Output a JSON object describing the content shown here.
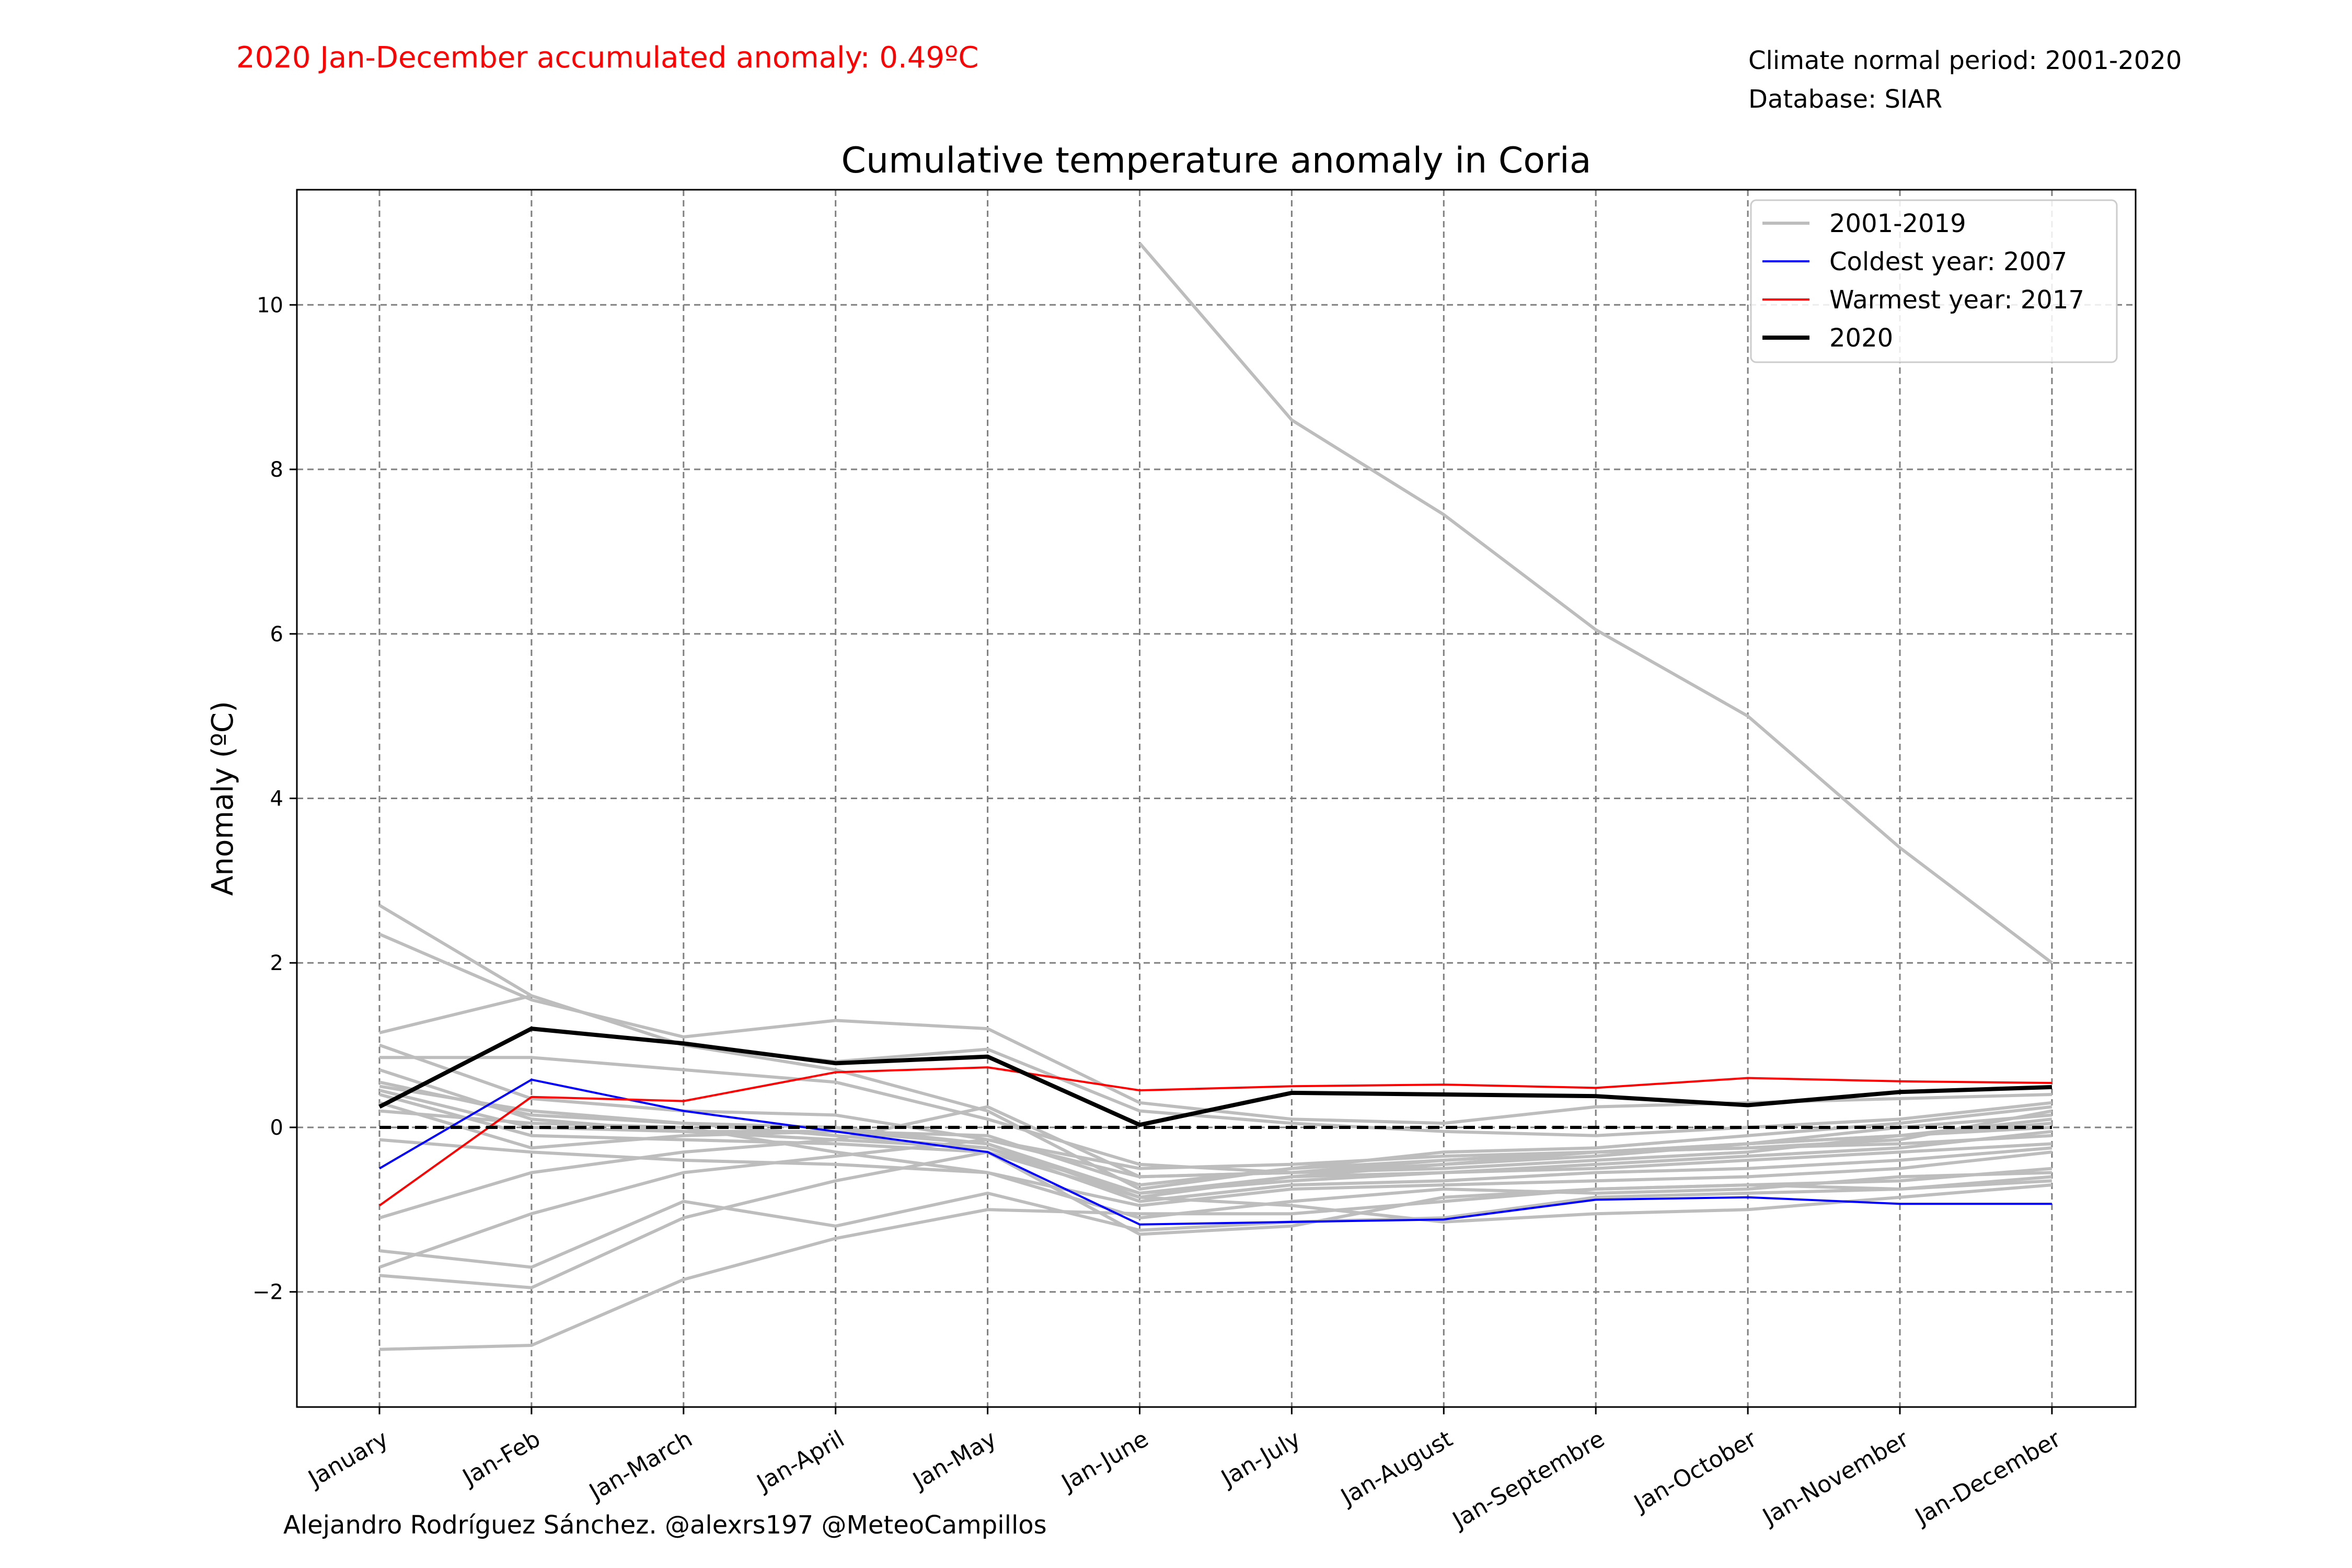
{
  "header": {
    "anomaly_text": "2020 Jan-December accumulated anomaly: 0.49ºC",
    "normal_period": "Climate normal period: 2001-2020",
    "database": "Database: SIAR"
  },
  "credit": "Alejandro Rodríguez Sánchez. @alexrs197 @MeteoCampillos",
  "colors": {
    "grey": "#bdbdbd",
    "coldest": "#0000ff",
    "warmest": "#ff0000",
    "current": "#000000",
    "grid": "#808080"
  },
  "chart_data": {
    "type": "line",
    "title": "Cumulative temperature anomaly in Coria",
    "xlabel": "",
    "ylabel": "Anomaly (ºC)",
    "ylim": [
      -3.4,
      11.4
    ],
    "yticks": [
      -2,
      0,
      2,
      4,
      6,
      8,
      10
    ],
    "ytick_labels": [
      "−2",
      "0",
      "2",
      "4",
      "6",
      "8",
      "10"
    ],
    "categories": [
      "January",
      "Jan-Feb",
      "Jan-March",
      "Jan-April",
      "Jan-May",
      "Jan-June",
      "Jan-July",
      "Jan-August",
      "Jan-Septembre",
      "Jan-October",
      "Jan-November",
      "Jan-December"
    ],
    "grid": true,
    "legend_position": "top-right",
    "legend": [
      {
        "label": "2001-2019",
        "role": "grey"
      },
      {
        "label": "Coldest year: 2007",
        "role": "coldest"
      },
      {
        "label": "Warmest year: 2017",
        "role": "warmest"
      },
      {
        "label": "2020",
        "role": "current"
      }
    ],
    "zero_line": 0,
    "series": [
      {
        "role": "grey",
        "values": [
          null,
          null,
          null,
          null,
          null,
          10.75,
          8.6,
          7.45,
          6.05,
          5.0,
          3.4,
          2.0
        ]
      },
      {
        "role": "grey",
        "values": [
          2.7,
          1.6,
          1.0,
          0.7,
          0.2,
          -0.75,
          -0.5,
          -0.4,
          -0.3,
          -0.25,
          -0.15,
          0.2
        ]
      },
      {
        "role": "grey",
        "values": [
          2.35,
          1.55,
          1.1,
          1.3,
          1.2,
          0.3,
          0.1,
          0.05,
          0.25,
          0.3,
          0.35,
          0.4
        ]
      },
      {
        "role": "grey",
        "values": [
          1.15,
          1.6,
          1.0,
          0.8,
          0.95,
          0.2,
          0.05,
          -0.05,
          -0.1,
          0.0,
          0.1,
          0.3
        ]
      },
      {
        "role": "grey",
        "values": [
          0.85,
          0.85,
          0.7,
          0.55,
          0.1,
          -0.45,
          -0.55,
          -0.5,
          -0.4,
          -0.3,
          -0.1,
          0.1
        ]
      },
      {
        "role": "grey",
        "values": [
          1.0,
          0.35,
          0.2,
          0.15,
          -0.15,
          -0.6,
          -0.55,
          -0.45,
          -0.35,
          -0.2,
          -0.1,
          0.05
        ]
      },
      {
        "role": "grey",
        "values": [
          0.7,
          0.1,
          -0.05,
          -0.05,
          -0.2,
          -0.8,
          -0.65,
          -0.55,
          -0.45,
          -0.35,
          -0.25,
          -0.05
        ]
      },
      {
        "role": "grey",
        "values": [
          0.5,
          0.2,
          0.05,
          -0.1,
          -0.25,
          -0.9,
          -0.7,
          -0.65,
          -0.55,
          -0.5,
          -0.4,
          -0.25
        ]
      },
      {
        "role": "grey",
        "values": [
          0.4,
          -0.1,
          -0.15,
          -0.2,
          -0.3,
          -0.85,
          -0.6,
          -0.45,
          -0.3,
          -0.2,
          0.0,
          0.15
        ]
      },
      {
        "role": "grey",
        "values": [
          0.3,
          -0.25,
          -0.1,
          -0.05,
          -0.1,
          -0.7,
          -0.5,
          -0.3,
          -0.25,
          -0.1,
          0.05,
          0.25
        ]
      },
      {
        "role": "grey",
        "values": [
          -0.15,
          -0.3,
          -0.4,
          -0.45,
          -0.55,
          -0.95,
          -0.75,
          -0.7,
          -0.65,
          -0.6,
          -0.5,
          -0.3
        ]
      },
      {
        "role": "grey",
        "values": [
          -1.1,
          -0.55,
          -0.3,
          -0.15,
          0.25,
          -0.6,
          -0.55,
          -0.4,
          -0.3,
          -0.25,
          -0.2,
          -0.1
        ]
      },
      {
        "role": "grey",
        "values": [
          -1.7,
          -1.05,
          -0.55,
          -0.35,
          -0.15,
          -0.5,
          -0.45,
          -0.35,
          -0.3,
          -0.2,
          -0.1,
          0.0
        ]
      },
      {
        "role": "grey",
        "values": [
          -1.5,
          -1.7,
          -0.9,
          -1.2,
          -0.8,
          -1.25,
          -1.15,
          -1.1,
          -0.85,
          -0.8,
          -0.75,
          -0.6
        ]
      },
      {
        "role": "grey",
        "values": [
          -1.8,
          -1.95,
          -1.1,
          -0.65,
          -0.3,
          -1.3,
          -1.2,
          -0.85,
          -0.75,
          -0.7,
          -0.65,
          -0.5
        ]
      },
      {
        "role": "grey",
        "values": [
          -2.7,
          -2.65,
          -1.85,
          -1.35,
          -1.0,
          -1.05,
          -1.05,
          -0.9,
          -0.75,
          -0.7,
          -0.75,
          -0.65
        ]
      },
      {
        "role": "grey",
        "values": [
          0.45,
          0.0,
          -0.05,
          -0.15,
          -0.25,
          -0.8,
          -0.6,
          -0.55,
          -0.5,
          -0.4,
          -0.3,
          -0.2
        ]
      },
      {
        "role": "grey",
        "values": [
          0.2,
          0.05,
          0.0,
          -0.3,
          -0.55,
          -1.1,
          -0.9,
          -0.75,
          -0.8,
          -0.75,
          -0.6,
          -0.55
        ]
      },
      {
        "role": "grey",
        "values": [
          0.55,
          0.15,
          0.05,
          0.0,
          -0.2,
          -0.85,
          -0.95,
          -1.15,
          -1.05,
          -1.0,
          -0.85,
          -0.7
        ]
      },
      {
        "name": "Coldest year: 2007",
        "role": "coldest",
        "values": [
          -0.5,
          0.58,
          0.2,
          -0.05,
          -0.3,
          -1.18,
          -1.15,
          -1.12,
          -0.88,
          -0.85,
          -0.93,
          -0.93
        ]
      },
      {
        "name": "Warmest year: 2017",
        "role": "warmest",
        "values": [
          -0.95,
          0.37,
          0.32,
          0.67,
          0.73,
          0.45,
          0.5,
          0.52,
          0.48,
          0.6,
          0.56,
          0.54
        ]
      },
      {
        "name": "2020",
        "role": "current",
        "values": [
          0.25,
          1.2,
          1.02,
          0.78,
          0.86,
          0.03,
          0.42,
          0.4,
          0.38,
          0.27,
          0.43,
          0.49
        ]
      }
    ]
  }
}
